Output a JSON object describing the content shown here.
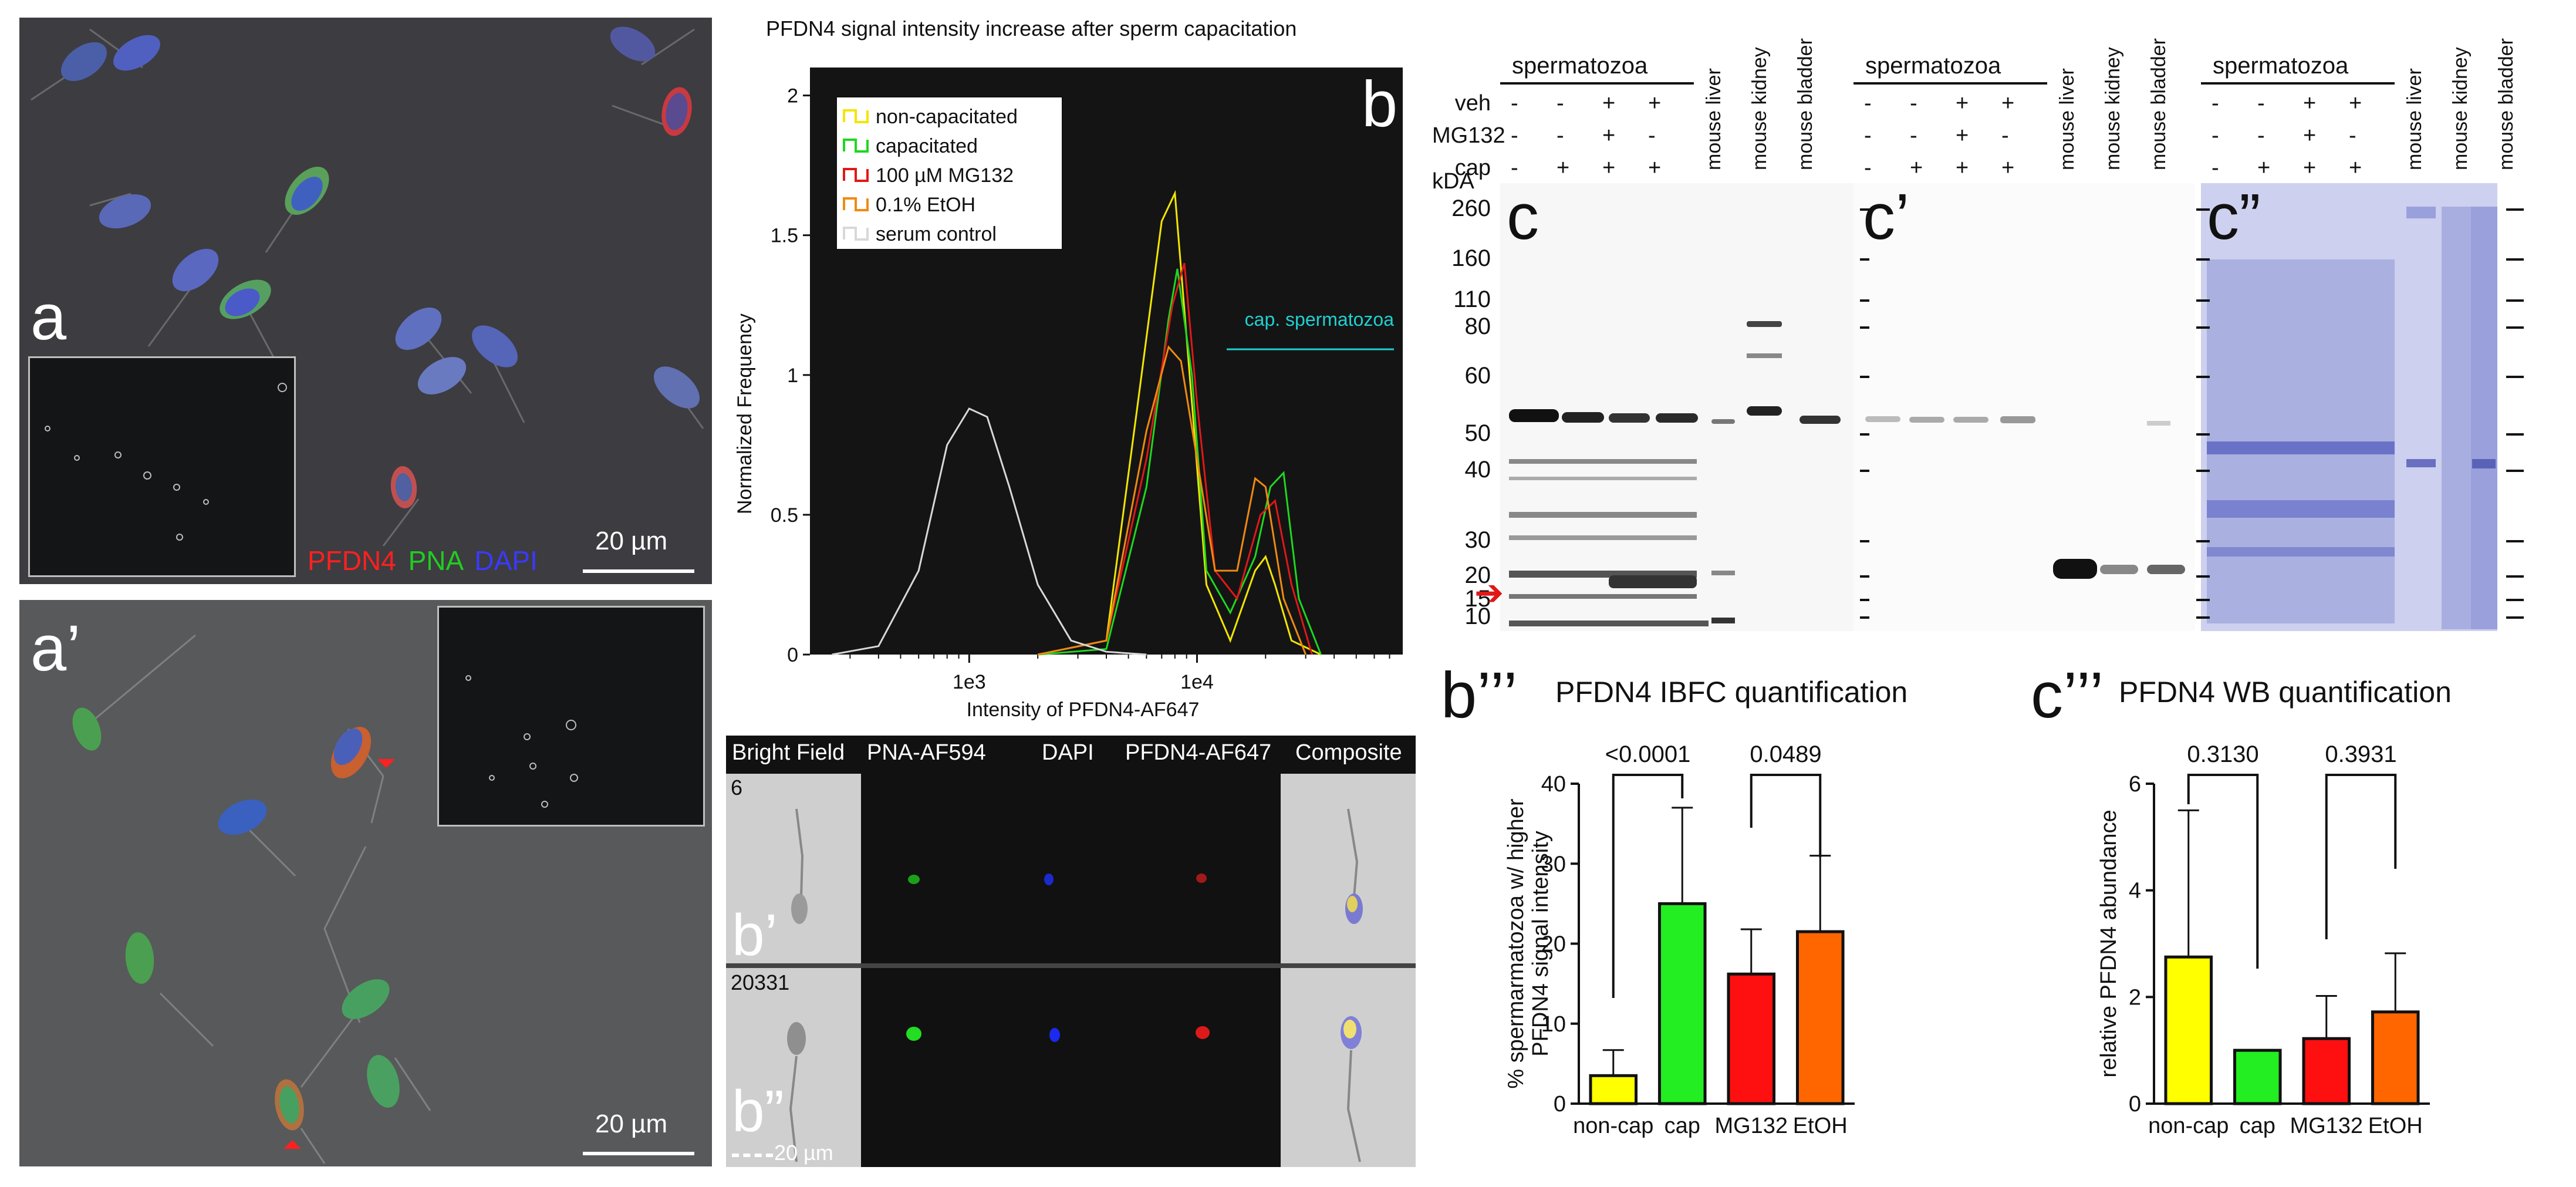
{
  "panel_a": {
    "label": "a",
    "legend": [
      "PFDN4",
      "PNA",
      "DAPI"
    ],
    "legend_colors": [
      "#ff2020",
      "#22cc22",
      "#3333ff"
    ],
    "scale": "20 µm"
  },
  "panel_a2": {
    "label": "a’",
    "scale": "20 µm"
  },
  "panel_b": {
    "title": "PFDN4 signal intensity increase after sperm capacitation",
    "label": "b",
    "annotation": "cap. spermatozoa"
  },
  "panel_b1": {
    "columns": [
      "Bright Field",
      "PNA-AF594",
      "DAPI",
      "PFDN4-AF647",
      "Composite"
    ],
    "row1_id": "6",
    "row2_id": "20331",
    "label1": "b’",
    "label2": "b”",
    "scale": "20 µm"
  },
  "panel_c": {
    "group_label": "spermatozoa",
    "row_labels": [
      "veh",
      "MG132",
      "cap"
    ],
    "row_signs": [
      [
        "-",
        "-",
        "+",
        "+"
      ],
      [
        "-",
        "-",
        "+",
        "-"
      ],
      [
        "-",
        "+",
        "+",
        "+"
      ]
    ],
    "tissues": [
      "mouse liver",
      "mouse kidney",
      "mouse bladder"
    ],
    "kda_label": "kDA",
    "markers": [
      "260",
      "160",
      "110",
      "80",
      "60",
      "50",
      "40",
      "30",
      "20",
      "15",
      "10"
    ],
    "labels": [
      "c",
      "c’",
      "c”"
    ]
  },
  "panel_b3": {
    "label": "b’’’",
    "title": "PFDN4 IBFC quantification"
  },
  "panel_c3": {
    "label": "c’’’",
    "title": "PFDN4 WB quantification"
  },
  "chart_data": [
    {
      "type": "line",
      "title": "PFDN4 signal intensity increase after sperm capacitation",
      "xlabel": "Intensity of PFDN4-AF647",
      "ylabel": "Normalized Frequency",
      "xscale": "log",
      "xlim": [
        200,
        80000
      ],
      "ylim": [
        0,
        2.1
      ],
      "xticks": [
        "1e3",
        "1e4"
      ],
      "yticks": [
        "0",
        "0.5",
        "1",
        "1.5",
        "2"
      ],
      "legend": "top-left",
      "series": [
        {
          "name": "non-capacitated",
          "color": "#f2e600",
          "x": [
            2000,
            4000,
            5500,
            7000,
            8000,
            9500,
            11000,
            14000,
            18000,
            20000,
            22000,
            26000,
            35000
          ],
          "y": [
            0,
            0.05,
            0.9,
            1.55,
            1.65,
            0.9,
            0.25,
            0.05,
            0.3,
            0.35,
            0.25,
            0.05,
            0
          ]
        },
        {
          "name": "capacitated",
          "color": "#1ed81e",
          "x": [
            2000,
            4000,
            6000,
            7500,
            8200,
            9500,
            11000,
            14000,
            18000,
            21000,
            24000,
            28000,
            35000
          ],
          "y": [
            0,
            0.02,
            0.6,
            1.2,
            1.38,
            1.0,
            0.3,
            0.15,
            0.35,
            0.6,
            0.65,
            0.2,
            0
          ]
        },
        {
          "name": "100 µM MG132",
          "color": "#e01818",
          "x": [
            2000,
            4000,
            6000,
            7800,
            8800,
            10000,
            12000,
            15000,
            19000,
            22000,
            26000,
            32000
          ],
          "y": [
            0,
            0.05,
            0.7,
            1.25,
            1.4,
            0.9,
            0.3,
            0.2,
            0.5,
            0.55,
            0.25,
            0
          ]
        },
        {
          "name": "0.1% EtOH",
          "color": "#f08a10",
          "x": [
            2000,
            4000,
            6000,
            7500,
            8500,
            10000,
            12000,
            15000,
            18000,
            20000,
            24000,
            30000
          ],
          "y": [
            0,
            0.05,
            0.8,
            1.1,
            1.05,
            0.7,
            0.3,
            0.3,
            0.63,
            0.6,
            0.2,
            0
          ]
        },
        {
          "name": "serum control",
          "color": "#d8d8d8",
          "x": [
            250,
            400,
            600,
            800,
            1000,
            1200,
            1500,
            2000,
            2800,
            4000,
            6000
          ],
          "y": [
            0,
            0.03,
            0.3,
            0.75,
            0.88,
            0.85,
            0.6,
            0.25,
            0.05,
            0.01,
            0
          ]
        }
      ]
    },
    {
      "type": "bar",
      "title": "PFDN4 IBFC quantification",
      "ylabel": "% spermarmatozoa w/ higher PFDN4 signal intensity",
      "categories": [
        "non-cap",
        "cap",
        "MG132",
        "EtOH"
      ],
      "values": [
        3.5,
        25,
        16.2,
        21.5
      ],
      "errors": [
        3.2,
        12,
        5.6,
        9.5
      ],
      "colors": [
        "#ffff00",
        "#22ee22",
        "#ff1010",
        "#ff6600"
      ],
      "ylim": [
        0,
        40
      ],
      "yticks": [
        "0",
        "10",
        "20",
        "30",
        "40"
      ],
      "comparisons": [
        {
          "from": 0,
          "to": 1,
          "label": "<0.0001"
        },
        {
          "from": 2,
          "to": 3,
          "label": "0.0489"
        }
      ]
    },
    {
      "type": "bar",
      "title": "PFDN4 WB quantification",
      "ylabel": "relative PFDN4 abundance",
      "categories": [
        "non-cap",
        "cap",
        "MG132",
        "EtOH"
      ],
      "values": [
        2.75,
        1.0,
        1.22,
        1.72
      ],
      "errors": [
        2.75,
        0,
        0.8,
        1.1
      ],
      "colors": [
        "#ffff00",
        "#22ee22",
        "#ff1010",
        "#ff6600"
      ],
      "ylim": [
        0,
        6
      ],
      "yticks": [
        "0",
        "2",
        "4",
        "6"
      ],
      "comparisons": [
        {
          "from": 0,
          "to": 1,
          "label": "0.3130"
        },
        {
          "from": 2,
          "to": 3,
          "label": "0.3931"
        }
      ]
    }
  ]
}
